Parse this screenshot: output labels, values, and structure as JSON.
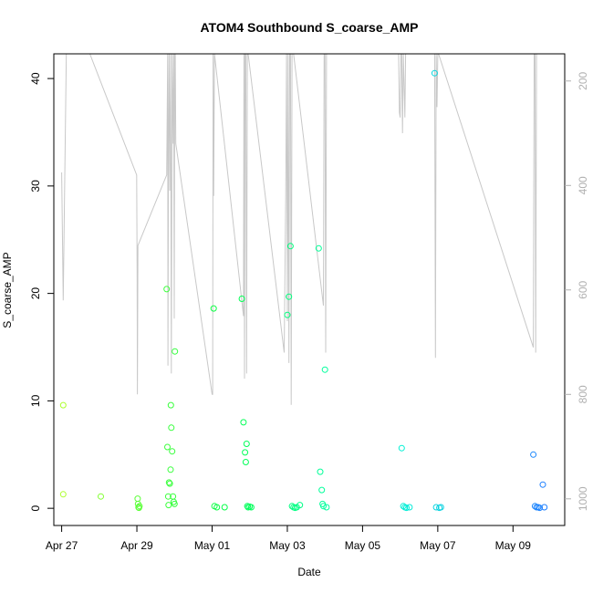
{
  "chart_data": {
    "type": "scatter",
    "title": "ATOM4 Southbound S_coarse_AMP",
    "xlabel": "Date",
    "ylabel": "S_coarse_AMP",
    "xlim": [
      "2021-04-26T19:00",
      "2021-05-10T09:00"
    ],
    "ylim": [
      -1.6,
      42.3
    ],
    "y2lim": [
      1051,
      148
    ],
    "x_ticks": [
      {
        "label": "Apr 27",
        "date": "2021-04-27"
      },
      {
        "label": "Apr 29",
        "date": "2021-04-29"
      },
      {
        "label": "May 01",
        "date": "2021-05-01"
      },
      {
        "label": "May 03",
        "date": "2021-05-03"
      },
      {
        "label": "May 05",
        "date": "2021-05-05"
      },
      {
        "label": "May 07",
        "date": "2021-05-07"
      },
      {
        "label": "May 09",
        "date": "2021-05-09"
      }
    ],
    "y_ticks": [
      0,
      10,
      20,
      30,
      40
    ],
    "y2_ticks": [
      200,
      400,
      600,
      800,
      1000
    ],
    "point_series": {
      "marker": "open-circle",
      "color_scale": [
        "#adff2f",
        "#00ff44",
        "#00ffd0",
        "#1e7fff"
      ],
      "x": [
        "2021-04-27T01:00",
        "2021-04-27T01:00",
        "2021-04-28T01:00",
        "2021-04-29T00:30",
        "2021-04-29T00:45",
        "2021-04-29T01:00",
        "2021-04-29T01:20",
        "2021-04-29T01:40",
        "2021-04-29T19:00",
        "2021-04-29T19:30",
        "2021-04-29T20:00",
        "2021-04-29T20:15",
        "2021-04-29T20:30",
        "2021-04-29T21:00",
        "2021-04-29T21:30",
        "2021-04-29T21:40",
        "2021-04-29T22:00",
        "2021-04-29T22:30",
        "2021-04-29T23:00",
        "2021-04-29T23:30",
        "2021-04-30T00:00",
        "2021-04-30T00:15",
        "2021-05-01T01:00",
        "2021-05-01T01:30",
        "2021-05-01T03:00",
        "2021-05-01T08:00",
        "2021-05-01T19:00",
        "2021-05-01T20:00",
        "2021-05-01T21:00",
        "2021-05-01T21:30",
        "2021-05-01T22:00",
        "2021-05-01T22:30",
        "2021-05-01T23:00",
        "2021-05-02T00:00",
        "2021-05-02T01:00",
        "2021-05-03T00:00",
        "2021-05-03T01:00",
        "2021-05-03T02:00",
        "2021-05-03T03:00",
        "2021-05-03T04:00",
        "2021-05-03T05:00",
        "2021-05-03T06:00",
        "2021-05-03T08:00",
        "2021-05-03T20:00",
        "2021-05-03T21:00",
        "2021-05-03T22:00",
        "2021-05-03T22:30",
        "2021-05-03T23:00",
        "2021-05-04T00:00",
        "2021-05-04T01:00",
        "2021-05-06T01:00",
        "2021-05-06T02:00",
        "2021-05-06T03:00",
        "2021-05-06T04:00",
        "2021-05-06T06:00",
        "2021-05-06T22:00",
        "2021-05-06T23:00",
        "2021-05-07T01:00",
        "2021-05-07T02:00",
        "2021-05-09T13:00",
        "2021-05-09T14:00",
        "2021-05-09T15:00",
        "2021-05-09T16:00",
        "2021-05-09T17:00",
        "2021-05-09T19:00",
        "2021-05-09T20:00"
      ],
      "y": [
        9.6,
        1.3,
        1.1,
        0.9,
        0.4,
        0.1,
        0.05,
        0.2,
        20.4,
        5.7,
        1.1,
        0.3,
        2.4,
        2.3,
        3.6,
        9.6,
        7.5,
        5.3,
        1.1,
        0.6,
        0.4,
        14.6,
        18.6,
        0.2,
        0.1,
        0.1,
        19.5,
        8.0,
        5.2,
        4.3,
        6.0,
        0.2,
        0.1,
        0.15,
        0.1,
        18.0,
        19.7,
        24.4,
        0.2,
        0.1,
        0.05,
        0.1,
        0.3,
        24.2,
        3.4,
        1.7,
        0.4,
        0.2,
        12.9,
        0.1,
        5.6,
        0.2,
        0.1,
        0.05,
        0.1,
        40.5,
        0.1,
        0.05,
        0.1,
        5.0,
        0.2,
        0.1,
        0.1,
        0.05,
        2.2,
        0.1
      ]
    },
    "line_series": {
      "color": "#c8c8c8",
      "axis": "right",
      "x": [
        "2021-04-27T00:00",
        "2021-04-27T01:00",
        "2021-04-27T03:00",
        "2021-04-27T12:00",
        "2021-04-27T18:00",
        "2021-04-28T23:50",
        "2021-04-29T00:10",
        "2021-04-29T00:20",
        "2021-04-29T00:40",
        "2021-04-29T19:00",
        "2021-04-29T19:40",
        "2021-04-29T19:50",
        "2021-04-29T20:10",
        "2021-04-29T20:30",
        "2021-04-29T21:00",
        "2021-04-29T21:30",
        "2021-04-29T22:00",
        "2021-04-29T22:30",
        "2021-04-29T23:10",
        "2021-04-29T23:30",
        "2021-04-29T23:50",
        "2021-04-30T00:10",
        "2021-04-30T00:30",
        "2021-04-30T00:50",
        "2021-05-01T00:00",
        "2021-05-01T00:20",
        "2021-05-01T00:40",
        "2021-05-01T01:00",
        "2021-05-01T01:30",
        "2021-05-01T20:00",
        "2021-05-01T20:20",
        "2021-05-01T20:40",
        "2021-05-01T21:00",
        "2021-05-01T21:30",
        "2021-05-01T22:00",
        "2021-05-01T22:30",
        "2021-05-01T23:00",
        "2021-05-02T22:00",
        "2021-05-02T23:00",
        "2021-05-02T23:30",
        "2021-05-03T00:00",
        "2021-05-03T00:30",
        "2021-05-03T01:00",
        "2021-05-03T01:30",
        "2021-05-03T02:00",
        "2021-05-03T02:30",
        "2021-05-03T03:00",
        "2021-05-03T04:00",
        "2021-05-03T23:00",
        "2021-05-03T23:30",
        "2021-05-04T00:00",
        "2021-05-04T00:30",
        "2021-05-04T01:00",
        "2021-05-05T23:00",
        "2021-05-05T23:30",
        "2021-05-06T00:00",
        "2021-05-06T00:30",
        "2021-05-06T01:00",
        "2021-05-06T01:30",
        "2021-05-06T02:00",
        "2021-05-06T03:00",
        "2021-05-06T03:30",
        "2021-05-06T22:00",
        "2021-05-06T22:30",
        "2021-05-06T23:00",
        "2021-05-06T23:30",
        "2021-05-07T00:00",
        "2021-05-07T00:30",
        "2021-05-09T13:00",
        "2021-05-09T13:30",
        "2021-05-09T14:00",
        "2021-05-09T14:30",
        "2021-05-09T15:00",
        "2021-05-09T15:30",
        "2021-05-09T16:00",
        "2021-05-09T16:30",
        "2021-05-09T17:00",
        "2021-05-09T17:30",
        "2021-05-09T18:00"
      ],
      "y": [
        375,
        620,
        148,
        148,
        148,
        380,
        565,
        800,
        515,
        380,
        148,
        745,
        320,
        148,
        410,
        148,
        760,
        148,
        320,
        148,
        655,
        148,
        148,
        320,
        800,
        800,
        148,
        420,
        148,
        650,
        148,
        770,
        148,
        148,
        760,
        148,
        148,
        720,
        420,
        148,
        660,
        148,
        740,
        148,
        148,
        820,
        148,
        148,
        630,
        148,
        148,
        720,
        148,
        148,
        260,
        270,
        148,
        148,
        300,
        148,
        270,
        148,
        148,
        730,
        148,
        250,
        148,
        148,
        710,
        148,
        148,
        720,
        148,
        148,
        148,
        148,
        148,
        148,
        148
      ]
    }
  }
}
